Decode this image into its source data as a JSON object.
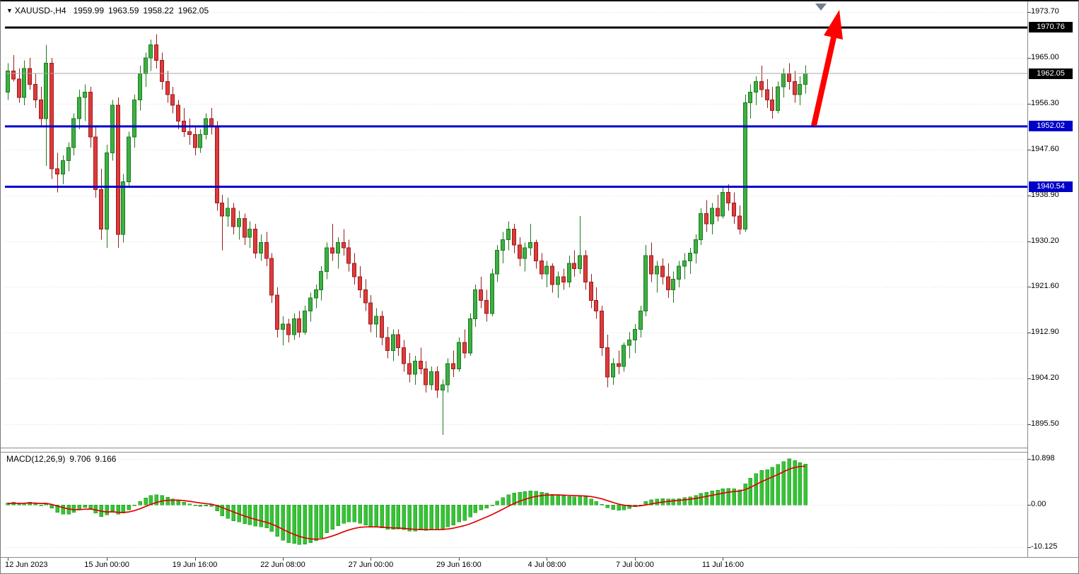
{
  "header": {
    "collapse_icon": "▼",
    "symbol_period": "XAUUSD-,H4",
    "open": "1959.99",
    "high": "1963.59",
    "low": "1958.22",
    "close": "1962.05"
  },
  "price_tags": [
    {
      "value": "1970.76",
      "color": "#000000"
    },
    {
      "value": "1962.05",
      "color": "#000000"
    },
    {
      "value": "1952.02",
      "color": "#0000C8"
    },
    {
      "value": "1940.54",
      "color": "#0000C8"
    }
  ],
  "macd_panel": {
    "name": "MACD(12,26,9)",
    "value_main": "9.706",
    "value_signal": "9.166"
  },
  "annotations": {
    "trend_arrow": {
      "color": "#FF0000",
      "direction": "up"
    },
    "top_marker": {
      "color": "#6f7f8f",
      "shape": "triangle-down"
    }
  },
  "colors": {
    "bull": "#3CB043",
    "bull_border": "#1E7A1E",
    "bear": "#DE3B3B",
    "bear_border": "#9B1C1C",
    "grid": "#D4D4D4",
    "bid_line": "#A9A9A9",
    "macd_hist": "#35C435",
    "macd_hist_border": "#1F8F1F",
    "macd_signal": "#E00000",
    "frame": "#8A8A8A",
    "tick": "#444444"
  },
  "chart_data": {
    "type": "candlestick",
    "title": "XAUUSD-,H4",
    "symbol": "XAUUSD",
    "timeframe": "H4",
    "y_axis": {
      "side": "right",
      "tick_labels": [
        "1973.70",
        "1965.00",
        "1956.30",
        "1947.60",
        "1938.90",
        "1930.20",
        "1921.60",
        "1912.90",
        "1904.20",
        "1895.50"
      ]
    },
    "x_axis": {
      "tick_labels": [
        {
          "text": "12 Jun 2023",
          "bar": 0
        },
        {
          "text": "15 Jun 00:00",
          "bar": 18
        },
        {
          "text": "19 Jun 16:00",
          "bar": 34
        },
        {
          "text": "22 Jun 08:00",
          "bar": 50
        },
        {
          "text": "27 Jun 00:00",
          "bar": 66
        },
        {
          "text": "29 Jun 16:00",
          "bar": 82
        },
        {
          "text": "4 Jul 08:00",
          "bar": 98
        },
        {
          "text": "7 Jul 00:00",
          "bar": 114
        },
        {
          "text": "11 Jul 16:00",
          "bar": 130
        }
      ]
    },
    "hlines": [
      {
        "price": 1970.76,
        "color": "#000000"
      },
      {
        "price": 1952.02,
        "color": "#0000C8"
      },
      {
        "price": 1940.54,
        "color": "#0000C8"
      }
    ],
    "bid_price": 1962.05,
    "candles_ohlc": [
      [
        1958.5,
        1964.0,
        1957.0,
        1962.5
      ],
      [
        1962.5,
        1965.5,
        1960.5,
        1961.0
      ],
      [
        1961.0,
        1963.0,
        1956.5,
        1957.5
      ],
      [
        1957.5,
        1964.5,
        1956.0,
        1963.0
      ],
      [
        1963.0,
        1965.0,
        1959.0,
        1960.0
      ],
      [
        1960.0,
        1962.0,
        1955.5,
        1957.0
      ],
      [
        1957.0,
        1959.5,
        1952.0,
        1953.5
      ],
      [
        1953.5,
        1967.5,
        1944.5,
        1964.0
      ],
      [
        1964.0,
        1965.0,
        1942.0,
        1944.0
      ],
      [
        1944.0,
        1947.0,
        1939.5,
        1943.0
      ],
      [
        1943.0,
        1946.5,
        1941.0,
        1945.5
      ],
      [
        1945.5,
        1949.0,
        1943.5,
        1948.0
      ],
      [
        1948.0,
        1954.5,
        1946.5,
        1953.5
      ],
      [
        1953.5,
        1959.0,
        1951.5,
        1957.5
      ],
      [
        1957.5,
        1960.0,
        1953.0,
        1958.5
      ],
      [
        1958.5,
        1959.5,
        1948.0,
        1950.0
      ],
      [
        1950.0,
        1952.0,
        1938.5,
        1940.0
      ],
      [
        1940.0,
        1944.0,
        1930.5,
        1932.5
      ],
      [
        1932.5,
        1948.5,
        1929.0,
        1947.0
      ],
      [
        1947.0,
        1957.0,
        1945.5,
        1956.0
      ],
      [
        1956.0,
        1957.5,
        1929.0,
        1931.5
      ],
      [
        1931.5,
        1943.0,
        1930.0,
        1941.5
      ],
      [
        1941.5,
        1951.0,
        1940.5,
        1950.0
      ],
      [
        1950.0,
        1958.0,
        1948.0,
        1957.0
      ],
      [
        1957.0,
        1963.5,
        1955.0,
        1962.0
      ],
      [
        1962.0,
        1966.0,
        1959.5,
        1965.0
      ],
      [
        1965.0,
        1968.5,
        1962.5,
        1967.5
      ],
      [
        1967.5,
        1969.5,
        1963.0,
        1964.5
      ],
      [
        1964.5,
        1966.0,
        1959.0,
        1960.5
      ],
      [
        1960.5,
        1962.5,
        1956.5,
        1958.0
      ],
      [
        1958.0,
        1959.5,
        1954.5,
        1956.0
      ],
      [
        1956.0,
        1957.0,
        1951.5,
        1953.0
      ],
      [
        1953.0,
        1955.5,
        1950.0,
        1951.0
      ],
      [
        1951.0,
        1953.5,
        1948.5,
        1950.5
      ],
      [
        1950.5,
        1952.0,
        1946.5,
        1948.0
      ],
      [
        1948.0,
        1951.5,
        1947.0,
        1950.5
      ],
      [
        1950.5,
        1954.5,
        1949.5,
        1953.5
      ],
      [
        1953.5,
        1955.5,
        1950.5,
        1952.0
      ],
      [
        1952.0,
        1953.0,
        1936.0,
        1937.5
      ],
      [
        1937.5,
        1939.0,
        1928.5,
        1935.0
      ],
      [
        1935.0,
        1938.5,
        1933.0,
        1936.5
      ],
      [
        1936.5,
        1937.5,
        1931.5,
        1933.0
      ],
      [
        1933.0,
        1936.0,
        1930.5,
        1934.5
      ],
      [
        1934.5,
        1935.5,
        1929.5,
        1931.0
      ],
      [
        1931.0,
        1934.0,
        1929.0,
        1932.5
      ],
      [
        1932.5,
        1933.5,
        1927.0,
        1928.0
      ],
      [
        1928.0,
        1931.5,
        1926.5,
        1930.0
      ],
      [
        1930.0,
        1932.0,
        1925.5,
        1927.0
      ],
      [
        1927.0,
        1928.0,
        1918.5,
        1920.0
      ],
      [
        1920.0,
        1921.5,
        1912.0,
        1913.5
      ],
      [
        1913.5,
        1916.0,
        1910.5,
        1914.5
      ],
      [
        1914.5,
        1915.5,
        1911.0,
        1912.5
      ],
      [
        1912.5,
        1916.5,
        1911.5,
        1915.5
      ],
      [
        1915.5,
        1917.0,
        1912.0,
        1913.0
      ],
      [
        1913.0,
        1918.0,
        1912.5,
        1917.0
      ],
      [
        1917.0,
        1920.5,
        1915.0,
        1919.5
      ],
      [
        1919.5,
        1922.0,
        1917.5,
        1921.0
      ],
      [
        1921.0,
        1925.5,
        1919.0,
        1924.5
      ],
      [
        1924.5,
        1930.0,
        1923.0,
        1929.0
      ],
      [
        1929.0,
        1933.5,
        1926.5,
        1928.0
      ],
      [
        1928.0,
        1931.0,
        1925.0,
        1930.0
      ],
      [
        1930.0,
        1932.5,
        1927.5,
        1929.0
      ],
      [
        1929.0,
        1930.5,
        1924.5,
        1926.0
      ],
      [
        1926.0,
        1928.0,
        1922.0,
        1923.5
      ],
      [
        1923.5,
        1925.5,
        1919.5,
        1921.0
      ],
      [
        1921.0,
        1923.0,
        1917.0,
        1918.5
      ],
      [
        1918.5,
        1920.0,
        1913.0,
        1914.5
      ],
      [
        1914.5,
        1917.5,
        1912.0,
        1916.0
      ],
      [
        1916.0,
        1917.0,
        1910.5,
        1912.0
      ],
      [
        1912.0,
        1914.0,
        1908.0,
        1909.5
      ],
      [
        1909.5,
        1913.5,
        1907.5,
        1912.5
      ],
      [
        1912.5,
        1913.5,
        1908.5,
        1910.0
      ],
      [
        1910.0,
        1911.5,
        1905.5,
        1907.0
      ],
      [
        1907.0,
        1909.0,
        1903.5,
        1905.0
      ],
      [
        1905.0,
        1908.5,
        1903.0,
        1907.5
      ],
      [
        1907.5,
        1910.0,
        1905.0,
        1906.0
      ],
      [
        1906.0,
        1907.5,
        1901.5,
        1903.0
      ],
      [
        1903.0,
        1906.5,
        1902.0,
        1905.5
      ],
      [
        1905.5,
        1906.5,
        1900.5,
        1902.0
      ],
      [
        1902.0,
        1904.0,
        1893.5,
        1903.0
      ],
      [
        1903.0,
        1908.0,
        1901.5,
        1907.0
      ],
      [
        1907.0,
        1909.5,
        1904.5,
        1906.0
      ],
      [
        1906.0,
        1912.0,
        1905.5,
        1911.0
      ],
      [
        1911.0,
        1913.5,
        1908.0,
        1909.0
      ],
      [
        1909.0,
        1916.5,
        1908.5,
        1915.5
      ],
      [
        1915.5,
        1922.0,
        1914.0,
        1921.0
      ],
      [
        1921.0,
        1923.5,
        1917.5,
        1919.0
      ],
      [
        1919.0,
        1921.0,
        1915.0,
        1916.5
      ],
      [
        1916.5,
        1925.0,
        1916.0,
        1924.0
      ],
      [
        1924.0,
        1929.5,
        1922.5,
        1928.5
      ],
      [
        1928.5,
        1932.0,
        1926.0,
        1930.5
      ],
      [
        1930.5,
        1934.0,
        1928.5,
        1932.5
      ],
      [
        1932.5,
        1933.5,
        1928.0,
        1929.5
      ],
      [
        1929.5,
        1931.0,
        1925.5,
        1927.0
      ],
      [
        1927.0,
        1930.0,
        1924.5,
        1929.0
      ],
      [
        1929.0,
        1933.5,
        1927.5,
        1930.0
      ],
      [
        1930.0,
        1930.5,
        1925.0,
        1926.5
      ],
      [
        1926.5,
        1928.0,
        1923.0,
        1924.0
      ],
      [
        1924.0,
        1926.5,
        1921.5,
        1925.5
      ],
      [
        1925.5,
        1926.0,
        1920.5,
        1922.0
      ],
      [
        1922.0,
        1924.5,
        1919.5,
        1923.5
      ],
      [
        1923.5,
        1925.0,
        1921.0,
        1922.5
      ],
      [
        1922.5,
        1927.5,
        1921.5,
        1926.0
      ],
      [
        1926.0,
        1928.5,
        1923.5,
        1925.0
      ],
      [
        1925.0,
        1935.0,
        1924.0,
        1927.5
      ],
      [
        1927.5,
        1928.5,
        1921.0,
        1922.5
      ],
      [
        1922.5,
        1924.0,
        1917.5,
        1919.0
      ],
      [
        1919.0,
        1921.5,
        1915.5,
        1917.0
      ],
      [
        1917.0,
        1918.0,
        1908.5,
        1910.0
      ],
      [
        1910.0,
        1912.5,
        1902.5,
        1904.5
      ],
      [
        1904.5,
        1908.0,
        1903.0,
        1907.0
      ],
      [
        1907.0,
        1909.5,
        1905.0,
        1906.5
      ],
      [
        1906.5,
        1911.0,
        1905.5,
        1910.5
      ],
      [
        1910.5,
        1913.0,
        1908.0,
        1911.5
      ],
      [
        1911.5,
        1914.5,
        1909.0,
        1913.5
      ],
      [
        1913.5,
        1918.0,
        1912.0,
        1917.0
      ],
      [
        1917.0,
        1929.5,
        1916.0,
        1927.5
      ],
      [
        1927.5,
        1930.0,
        1922.5,
        1924.0
      ],
      [
        1924.0,
        1926.5,
        1920.5,
        1925.5
      ],
      [
        1925.5,
        1927.0,
        1922.0,
        1923.5
      ],
      [
        1923.5,
        1926.0,
        1919.5,
        1921.0
      ],
      [
        1921.0,
        1924.5,
        1918.5,
        1923.0
      ],
      [
        1923.0,
        1926.5,
        1921.5,
        1925.5
      ],
      [
        1925.5,
        1928.0,
        1923.0,
        1926.5
      ],
      [
        1926.5,
        1929.0,
        1924.0,
        1928.0
      ],
      [
        1928.0,
        1931.5,
        1926.0,
        1930.5
      ],
      [
        1930.5,
        1936.5,
        1929.5,
        1935.5
      ],
      [
        1935.5,
        1938.0,
        1932.0,
        1933.5
      ],
      [
        1933.5,
        1937.5,
        1931.5,
        1936.5
      ],
      [
        1936.5,
        1939.0,
        1934.0,
        1935.0
      ],
      [
        1935.0,
        1940.5,
        1934.5,
        1939.5
      ],
      [
        1939.5,
        1941.0,
        1936.0,
        1937.5
      ],
      [
        1937.5,
        1939.5,
        1933.5,
        1935.0
      ],
      [
        1935.0,
        1937.0,
        1931.5,
        1932.5
      ],
      [
        1932.5,
        1958.0,
        1932.0,
        1956.5
      ],
      [
        1956.5,
        1960.0,
        1953.5,
        1958.5
      ],
      [
        1958.5,
        1961.5,
        1956.0,
        1960.5
      ],
      [
        1960.5,
        1963.5,
        1957.5,
        1959.0
      ],
      [
        1959.0,
        1961.0,
        1955.5,
        1957.0
      ],
      [
        1957.0,
        1959.5,
        1953.5,
        1955.0
      ],
      [
        1955.0,
        1960.5,
        1954.5,
        1959.5
      ],
      [
        1959.5,
        1963.0,
        1957.5,
        1962.0
      ],
      [
        1962.0,
        1964.0,
        1959.0,
        1960.5
      ],
      [
        1960.5,
        1962.5,
        1956.5,
        1958.0
      ],
      [
        1958.0,
        1961.5,
        1956.0,
        1960.0
      ],
      [
        1959.99,
        1963.59,
        1958.22,
        1962.05
      ]
    ],
    "macd": {
      "params": "12,26,9",
      "tick_labels": [
        "10.898",
        "0.00",
        "-10.125"
      ],
      "range": [
        -10.125,
        10.898
      ],
      "histogram": [
        0.5,
        0.6,
        0.4,
        0.5,
        0.6,
        0.3,
        -0.1,
        0.4,
        -0.8,
        -1.8,
        -2.2,
        -2.2,
        -1.8,
        -1.2,
        -0.6,
        -0.9,
        -2.0,
        -2.8,
        -2.4,
        -1.5,
        -2.2,
        -2.0,
        -1.2,
        -0.2,
        0.8,
        1.6,
        2.2,
        2.4,
        2.2,
        1.8,
        1.4,
        1.0,
        0.6,
        0.2,
        -0.2,
        -0.4,
        -0.3,
        -0.4,
        -1.5,
        -2.6,
        -3.2,
        -3.8,
        -4.1,
        -4.5,
        -4.7,
        -5.1,
        -5.2,
        -5.5,
        -6.3,
        -7.5,
        -8.4,
        -9.0,
        -9.2,
        -9.4,
        -9.3,
        -9.0,
        -8.5,
        -7.8,
        -6.7,
        -5.8,
        -5.0,
        -4.4,
        -4.1,
        -4.1,
        -4.4,
        -4.8,
        -5.2,
        -5.3,
        -5.5,
        -5.8,
        -5.8,
        -5.7,
        -5.9,
        -6.2,
        -6.2,
        -6.0,
        -6.1,
        -5.9,
        -5.9,
        -5.7,
        -5.2,
        -4.8,
        -4.1,
        -3.7,
        -2.9,
        -1.9,
        -1.2,
        -0.8,
        -0.1,
        0.9,
        1.7,
        2.4,
        2.8,
        3.0,
        3.1,
        3.3,
        3.2,
        3.0,
        2.8,
        2.5,
        2.3,
        2.1,
        2.0,
        1.9,
        2.1,
        1.9,
        1.4,
        0.8,
        0.1,
        -0.7,
        -1.1,
        -1.3,
        -1.2,
        -0.9,
        -0.5,
        0.0,
        0.8,
        1.2,
        1.4,
        1.5,
        1.4,
        1.4,
        1.5,
        1.7,
        1.9,
        2.2,
        2.7,
        3.0,
        3.3,
        3.5,
        3.8,
        3.9,
        3.8,
        3.6,
        5.0,
        6.3,
        7.4,
        8.2,
        8.3,
        8.9,
        9.6,
        10.3,
        10.898,
        10.5,
        10.0,
        9.706
      ],
      "signal": [
        0.3,
        0.36,
        0.37,
        0.39,
        0.44,
        0.41,
        0.31,
        0.33,
        0.1,
        -0.28,
        -0.66,
        -0.97,
        -1.14,
        -1.15,
        -1.04,
        -1.01,
        -1.21,
        -1.53,
        -1.7,
        -1.66,
        -1.77,
        -1.82,
        -1.69,
        -1.39,
        -0.96,
        -0.44,
        0.09,
        0.55,
        0.88,
        1.06,
        1.13,
        1.1,
        1.0,
        0.84,
        0.63,
        0.43,
        0.28,
        0.15,
        -0.18,
        -0.67,
        -1.17,
        -1.7,
        -2.18,
        -2.64,
        -3.06,
        -3.46,
        -3.81,
        -4.15,
        -4.58,
        -5.16,
        -5.81,
        -6.45,
        -7.0,
        -7.48,
        -7.84,
        -8.08,
        -8.16,
        -8.09,
        -7.81,
        -7.41,
        -6.93,
        -6.42,
        -5.96,
        -5.59,
        -5.35,
        -5.24,
        -5.23,
        -5.25,
        -5.3,
        -5.4,
        -5.48,
        -5.52,
        -5.6,
        -5.72,
        -5.81,
        -5.85,
        -5.9,
        -5.9,
        -5.9,
        -5.86,
        -5.73,
        -5.54,
        -5.25,
        -4.94,
        -4.53,
        -4.01,
        -3.45,
        -2.92,
        -2.35,
        -1.7,
        -1.02,
        -0.34,
        0.29,
        0.83,
        1.29,
        1.69,
        1.99,
        2.19,
        2.31,
        2.35,
        2.34,
        2.29,
        2.23,
        2.17,
        2.15,
        2.1,
        1.96,
        1.73,
        1.4,
        0.98,
        0.57,
        0.19,
        -0.09,
        -0.25,
        -0.3,
        -0.24,
        -0.03,
        0.22,
        0.45,
        0.66,
        0.81,
        0.93,
        1.04,
        1.17,
        1.32,
        1.5,
        1.74,
        1.99,
        2.25,
        2.5,
        2.76,
        2.99,
        3.15,
        3.24,
        3.59,
        4.13,
        4.79,
        5.47,
        6.04,
        6.61,
        7.21,
        7.83,
        8.44,
        8.85,
        9.08,
        9.166
      ]
    }
  }
}
